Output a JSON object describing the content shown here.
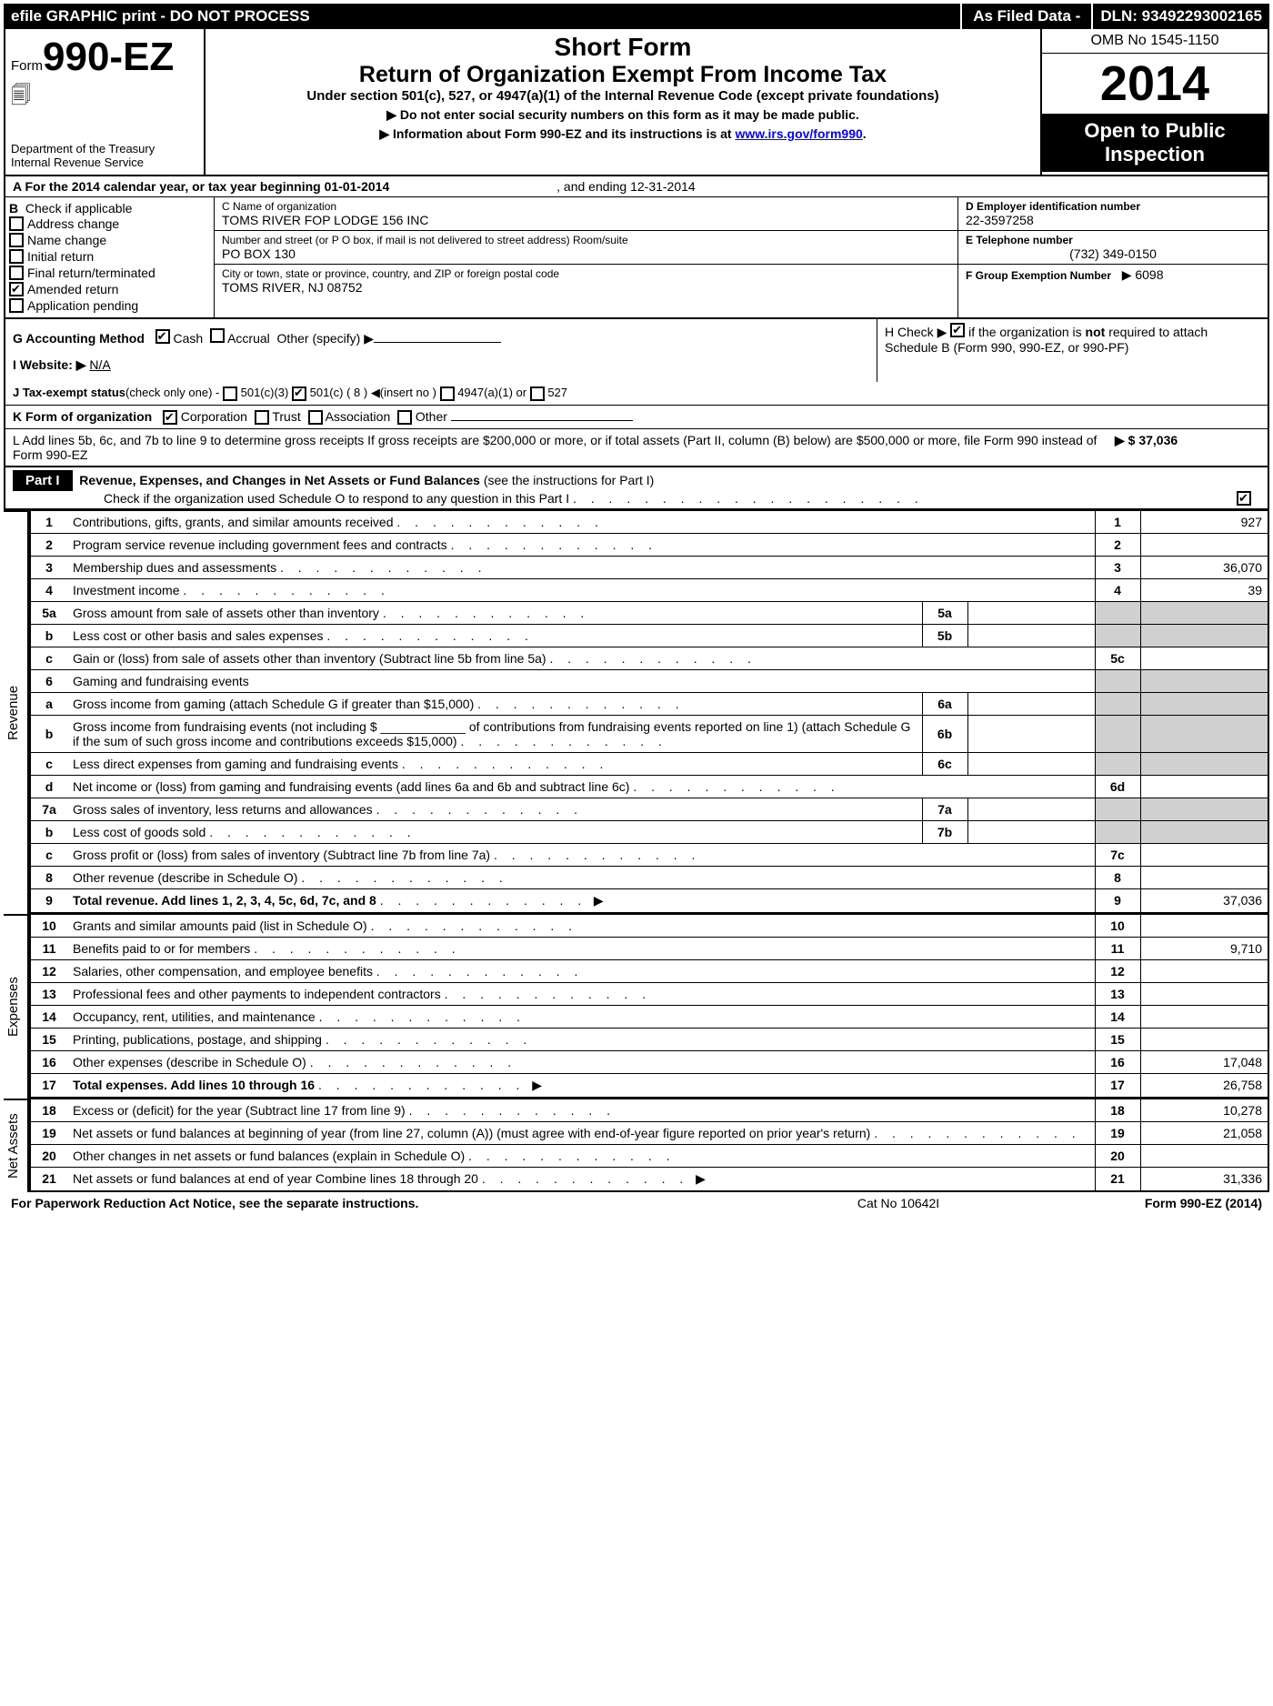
{
  "topbar": {
    "left": "efile GRAPHIC print - DO NOT PROCESS",
    "mid": "As Filed Data -",
    "right": "DLN: 93492293002165"
  },
  "header": {
    "form_prefix": "Form",
    "form_no": "990-EZ",
    "dept1": "Department of the Treasury",
    "dept2": "Internal Revenue Service",
    "short": "Short Form",
    "title": "Return of Organization Exempt From Income Tax",
    "sub": "Under section 501(c), 527, or 4947(a)(1) of the Internal Revenue Code (except private foundations)",
    "note1": "▶ Do not enter social security numbers on this form as it may be made public.",
    "note2_pre": "▶ Information about Form 990-EZ and its instructions is at ",
    "note2_link": "www.irs.gov/form990",
    "omb": "OMB No  1545-1150",
    "year": "2014",
    "open": "Open to Public Inspection"
  },
  "lineA": {
    "text_pre": "A  For the 2014 calendar year, or tax year beginning 01-01-2014",
    "text_post": ", and ending 12-31-2014"
  },
  "colB": {
    "head": "B",
    "head2": "Check if applicable",
    "items": [
      "Address change",
      "Name change",
      "Initial return",
      "Final return/terminated",
      "Amended return",
      "Application pending"
    ],
    "checked_index": 4
  },
  "colC": {
    "name_lbl": "C Name of organization",
    "name": "TOMS RIVER FOP LODGE 156 INC",
    "addr_lbl": "Number and street (or P  O  box, if mail is not delivered to street address)    Room/suite",
    "addr": "PO BOX 130",
    "city_lbl": "City or town, state or province, country, and ZIP or foreign postal code",
    "city": "TOMS RIVER, NJ  08752"
  },
  "colD": {
    "ein_lbl": "D Employer identification number",
    "ein": "22-3597258",
    "tel_lbl": "E Telephone number",
    "tel": "(732) 349-0150",
    "grp_lbl": "F Group Exemption Number",
    "grp": "▶ 6098"
  },
  "rowG": {
    "label": "G Accounting Method",
    "cash": "Cash",
    "accrual": "Accrual",
    "other": "Other (specify) ▶"
  },
  "rowH": {
    "text1": "H  Check ▶",
    "text2": "if the organization is",
    "text3": "not",
    "text4": "required to attach Schedule B (Form 990, 990-EZ, or 990-PF)"
  },
  "rowI": {
    "label": "I Website: ▶",
    "value": "N/A"
  },
  "rowJ": {
    "label": "J Tax-exempt status",
    "note": "(check only one) -",
    "o1": "501(c)(3)",
    "o2": "501(c) ( 8 )",
    "o2_note": "◀(insert no )",
    "o3": "4947(a)(1) or",
    "o4": "527"
  },
  "rowK": {
    "label": "K Form of organization",
    "o1": "Corporation",
    "o2": "Trust",
    "o3": "Association",
    "o4": "Other"
  },
  "rowL": {
    "text": "L Add lines 5b, 6c, and 7b to line 9 to determine gross receipts  If gross receipts are $200,000 or more, or if total assets (Part II, column (B) below) are $500,000 or more, file Form 990 instead of Form 990-EZ",
    "amount": "▶ $ 37,036"
  },
  "part1": {
    "label": "Part I",
    "title": "Revenue, Expenses, and Changes in Net Assets or Fund Balances",
    "title_note": "(see the instructions for Part I)",
    "check_note": "Check if the organization used Schedule O to respond to any question in this Part I"
  },
  "sections": {
    "revenue_label": "Revenue",
    "expenses_label": "Expenses",
    "netassets_label": "Net Assets"
  },
  "lines": [
    {
      "n": "1",
      "d": "Contributions, gifts, grants, and similar amounts received",
      "box": "1",
      "v": "927"
    },
    {
      "n": "2",
      "d": "Program service revenue including government fees and contracts",
      "box": "2",
      "v": ""
    },
    {
      "n": "3",
      "d": "Membership dues and assessments",
      "box": "3",
      "v": "36,070"
    },
    {
      "n": "4",
      "d": "Investment income",
      "box": "4",
      "v": "39"
    },
    {
      "n": "5a",
      "d": "Gross amount from sale of assets other than inventory",
      "mid": "5a",
      "midv": ""
    },
    {
      "n": "b",
      "d": "Less  cost or other basis and sales expenses",
      "mid": "5b",
      "midv": ""
    },
    {
      "n": "c",
      "d": "Gain or (loss) from sale of assets other than inventory (Subtract line 5b from line 5a)",
      "box": "5c",
      "v": ""
    },
    {
      "n": "6",
      "d": "Gaming and fundraising events",
      "shade": true
    },
    {
      "n": "a",
      "d": "Gross income from gaming (attach Schedule G if greater than $15,000)",
      "mid": "6a",
      "midv": ""
    },
    {
      "n": "b",
      "d": "Gross income from fundraising events (not including $ ____________ of contributions from fundraising events reported on line 1) (attach Schedule G if the sum of such gross income and contributions exceeds $15,000)",
      "mid": "6b",
      "midv": ""
    },
    {
      "n": "c",
      "d": "Less  direct expenses from gaming and fundraising events",
      "mid": "6c",
      "midv": ""
    },
    {
      "n": "d",
      "d": "Net income or (loss) from gaming and fundraising events (add lines 6a and 6b and subtract line 6c)",
      "box": "6d",
      "v": ""
    },
    {
      "n": "7a",
      "d": "Gross sales of inventory, less returns and allowances",
      "mid": "7a",
      "midv": ""
    },
    {
      "n": "b",
      "d": "Less  cost of goods sold",
      "mid": "7b",
      "midv": ""
    },
    {
      "n": "c",
      "d": "Gross profit or (loss) from sales of inventory (Subtract line 7b from line 7a)",
      "box": "7c",
      "v": ""
    },
    {
      "n": "8",
      "d": "Other revenue (describe in Schedule O)",
      "box": "8",
      "v": ""
    },
    {
      "n": "9",
      "d": "Total revenue. Add lines 1, 2, 3, 4, 5c, 6d, 7c, and 8",
      "box": "9",
      "v": "37,036",
      "bold": true,
      "arrow": true
    }
  ],
  "exp_lines": [
    {
      "n": "10",
      "d": "Grants and similar amounts paid (list in Schedule O)",
      "box": "10",
      "v": ""
    },
    {
      "n": "11",
      "d": "Benefits paid to or for members",
      "box": "11",
      "v": "9,710"
    },
    {
      "n": "12",
      "d": "Salaries, other compensation, and employee benefits",
      "box": "12",
      "v": ""
    },
    {
      "n": "13",
      "d": "Professional fees and other payments to independent contractors",
      "box": "13",
      "v": ""
    },
    {
      "n": "14",
      "d": "Occupancy, rent, utilities, and maintenance",
      "box": "14",
      "v": ""
    },
    {
      "n": "15",
      "d": "Printing, publications, postage, and shipping",
      "box": "15",
      "v": ""
    },
    {
      "n": "16",
      "d": "Other expenses (describe in Schedule O)",
      "box": "16",
      "v": "17,048"
    },
    {
      "n": "17",
      "d": "Total expenses. Add lines 10 through 16",
      "box": "17",
      "v": "26,758",
      "bold": true,
      "arrow": true
    }
  ],
  "na_lines": [
    {
      "n": "18",
      "d": "Excess or (deficit) for the year (Subtract line 17 from line 9)",
      "box": "18",
      "v": "10,278"
    },
    {
      "n": "19",
      "d": "Net assets or fund balances at beginning of year (from line 27, column (A)) (must agree with end-of-year figure reported on prior year's return)",
      "box": "19",
      "v": "21,058"
    },
    {
      "n": "20",
      "d": "Other changes in net assets or fund balances (explain in Schedule O)",
      "box": "20",
      "v": ""
    },
    {
      "n": "21",
      "d": "Net assets or fund balances at end of year  Combine lines 18 through 20",
      "box": "21",
      "v": "31,336",
      "arrow": true
    }
  ],
  "footer": {
    "left": "For Paperwork Reduction Act Notice, see the separate instructions.",
    "mid": "Cat No  10642I",
    "right": "Form 990-EZ (2014)"
  }
}
